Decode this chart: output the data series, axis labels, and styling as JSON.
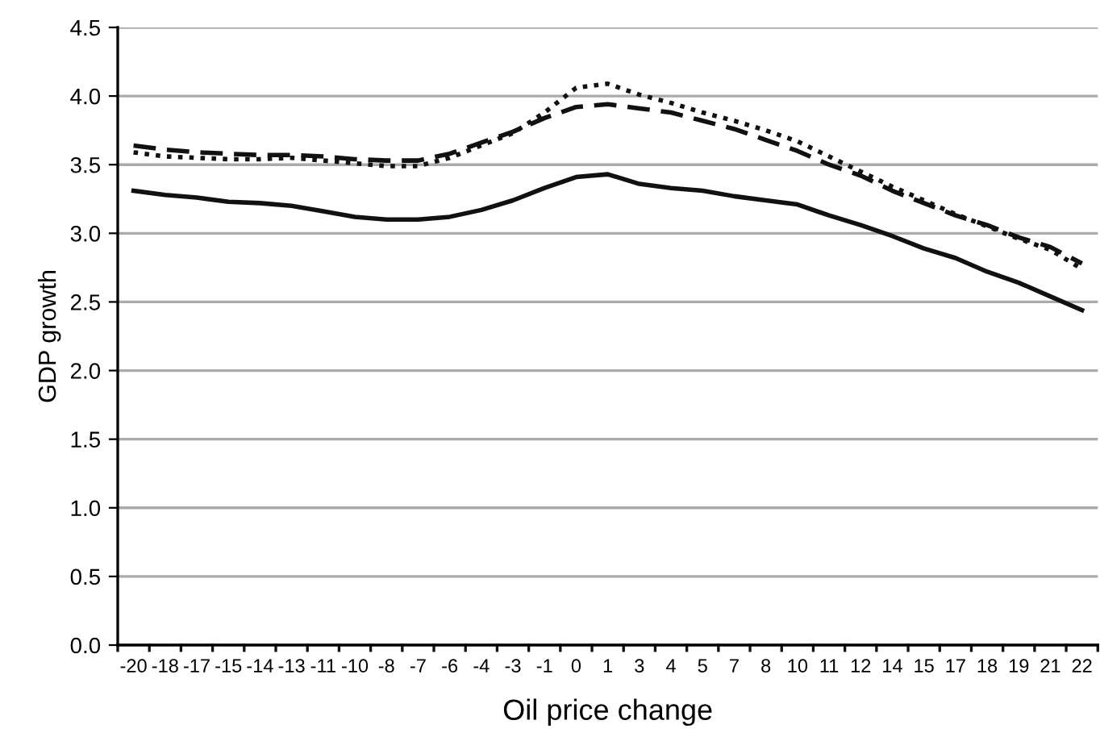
{
  "chart_data": {
    "type": "line",
    "xlabel": "Oil price change",
    "ylabel": "GDP growth",
    "categories": [
      "-20",
      "-18",
      "-17",
      "-15",
      "-14",
      "-13",
      "-11",
      "-10",
      "-8",
      "-7",
      "-6",
      "-4",
      "-3",
      "-1",
      "0",
      "1",
      "3",
      "4",
      "5",
      "7",
      "8",
      "10",
      "11",
      "12",
      "14",
      "15",
      "17",
      "18",
      "19",
      "21",
      "22"
    ],
    "series": [
      {
        "color": "#111111",
        "line_style": "solid",
        "values": [
          3.31,
          3.28,
          3.26,
          3.23,
          3.22,
          3.2,
          3.16,
          3.12,
          3.1,
          3.1,
          3.12,
          3.17,
          3.24,
          3.33,
          3.41,
          3.43,
          3.36,
          3.33,
          3.31,
          3.27,
          3.24,
          3.21,
          3.13,
          3.06,
          2.98,
          2.89,
          2.82,
          2.72,
          2.64,
          2.54,
          2.44
        ]
      },
      {
        "color": "#111111",
        "line_style": "dashed",
        "values": [
          3.64,
          3.61,
          3.59,
          3.58,
          3.57,
          3.57,
          3.56,
          3.54,
          3.53,
          3.53,
          3.58,
          3.66,
          3.74,
          3.84,
          3.92,
          3.94,
          3.91,
          3.88,
          3.82,
          3.76,
          3.68,
          3.6,
          3.5,
          3.42,
          3.31,
          3.22,
          3.13,
          3.06,
          2.97,
          2.9,
          2.78
        ]
      },
      {
        "color": "#111111",
        "line_style": "dotted",
        "values": [
          3.59,
          3.56,
          3.55,
          3.54,
          3.54,
          3.55,
          3.53,
          3.51,
          3.49,
          3.49,
          3.55,
          3.64,
          3.73,
          3.88,
          4.06,
          4.09,
          4.01,
          3.95,
          3.88,
          3.82,
          3.75,
          3.67,
          3.56,
          3.45,
          3.34,
          3.24,
          3.14,
          3.05,
          2.96,
          2.88,
          2.74
        ]
      }
    ],
    "ylim": [
      0,
      4.5
    ],
    "yticks": [
      {
        "value": 0,
        "label": "0.0"
      },
      0.5,
      {
        "value": 1,
        "label": "1.0"
      },
      1.5,
      {
        "value": 2,
        "label": "2.0"
      },
      2.5,
      {
        "value": 3,
        "label": "3.0"
      },
      3.5,
      {
        "value": 4,
        "label": "4.0"
      },
      4.5
    ],
    "grid": "y",
    "legend": false
  }
}
